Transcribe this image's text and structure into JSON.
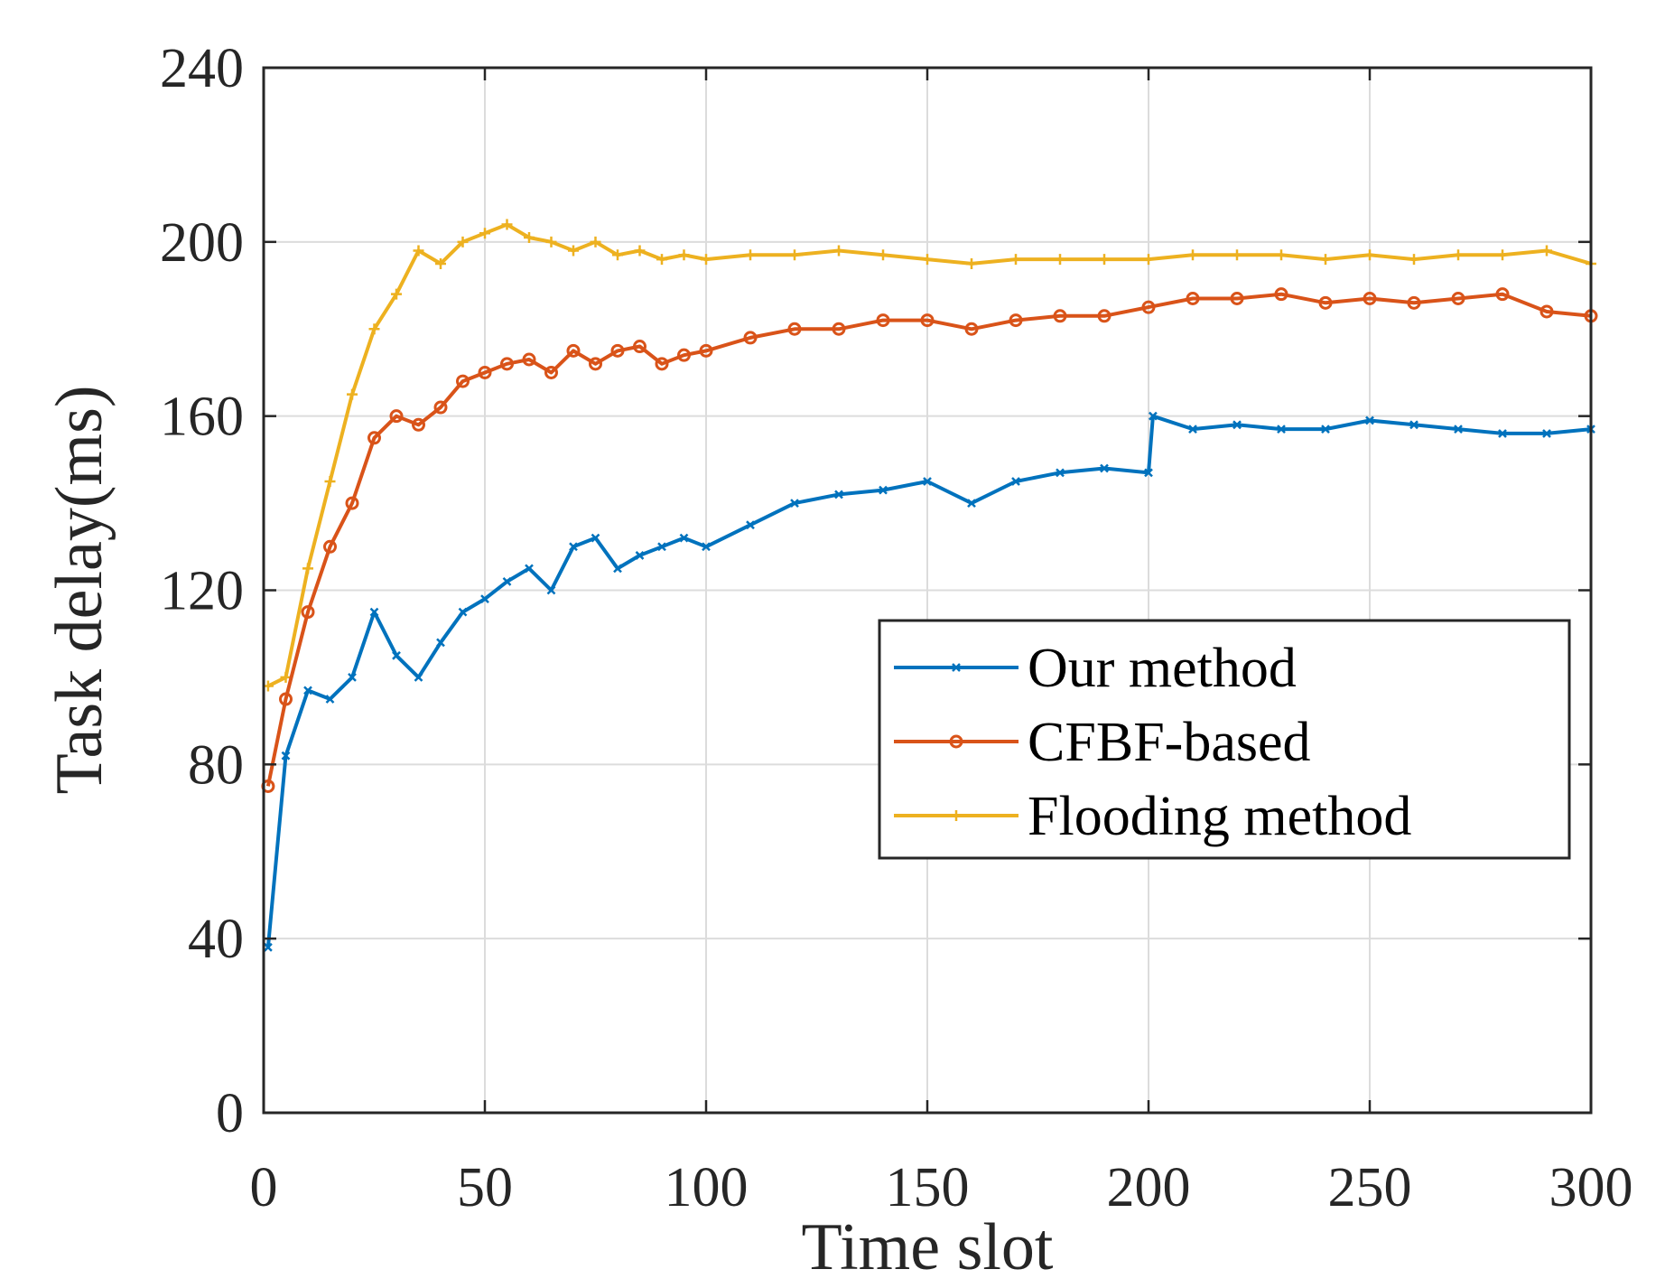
{
  "chart_data": {
    "type": "line",
    "xlabel": "Time slot",
    "ylabel": "Task delay(ms)",
    "xlim": [
      0,
      300
    ],
    "ylim": [
      0,
      240
    ],
    "xticks": [
      0,
      50,
      100,
      150,
      200,
      250,
      300
    ],
    "yticks": [
      0,
      40,
      80,
      120,
      160,
      200,
      240
    ],
    "grid": true,
    "legend_position": "center-right",
    "series": [
      {
        "name": "Our method",
        "color": "#0072BD",
        "marker": "x",
        "x": [
          1,
          5,
          10,
          15,
          20,
          25,
          30,
          35,
          40,
          45,
          50,
          55,
          60,
          65,
          70,
          75,
          80,
          85,
          90,
          95,
          100,
          110,
          120,
          130,
          140,
          150,
          160,
          170,
          180,
          190,
          200,
          201,
          210,
          220,
          230,
          240,
          250,
          260,
          270,
          280,
          290,
          300
        ],
        "values": [
          38,
          82,
          97,
          95,
          100,
          115,
          105,
          100,
          108,
          115,
          118,
          122,
          125,
          120,
          130,
          132,
          125,
          128,
          130,
          132,
          130,
          135,
          140,
          142,
          143,
          145,
          140,
          145,
          147,
          148,
          147,
          160,
          157,
          158,
          157,
          157,
          159,
          158,
          157,
          156,
          156,
          157
        ]
      },
      {
        "name": "CFBF-based",
        "color": "#D95319",
        "marker": "o",
        "x": [
          1,
          5,
          10,
          15,
          20,
          25,
          30,
          35,
          40,
          45,
          50,
          55,
          60,
          65,
          70,
          75,
          80,
          85,
          90,
          95,
          100,
          110,
          120,
          130,
          140,
          150,
          160,
          170,
          180,
          190,
          200,
          210,
          220,
          230,
          240,
          250,
          260,
          270,
          280,
          290,
          300
        ],
        "values": [
          75,
          95,
          115,
          130,
          140,
          155,
          160,
          158,
          162,
          168,
          170,
          172,
          173,
          170,
          175,
          172,
          175,
          176,
          172,
          174,
          175,
          178,
          180,
          180,
          182,
          182,
          180,
          182,
          183,
          183,
          185,
          187,
          187,
          188,
          186,
          187,
          186,
          187,
          188,
          184,
          183
        ]
      },
      {
        "name": "Flooding method",
        "color": "#EDB120",
        "marker": "+",
        "x": [
          1,
          5,
          10,
          15,
          20,
          25,
          30,
          35,
          40,
          45,
          50,
          55,
          60,
          65,
          70,
          75,
          80,
          85,
          90,
          95,
          100,
          110,
          120,
          130,
          140,
          150,
          160,
          170,
          180,
          190,
          200,
          210,
          220,
          230,
          240,
          250,
          260,
          270,
          280,
          290,
          300
        ],
        "values": [
          98,
          100,
          125,
          145,
          165,
          180,
          188,
          198,
          195,
          200,
          202,
          204,
          201,
          200,
          198,
          200,
          197,
          198,
          196,
          197,
          196,
          197,
          197,
          198,
          197,
          196,
          195,
          196,
          196,
          196,
          196,
          197,
          197,
          197,
          196,
          197,
          196,
          197,
          197,
          198,
          195
        ]
      }
    ]
  }
}
